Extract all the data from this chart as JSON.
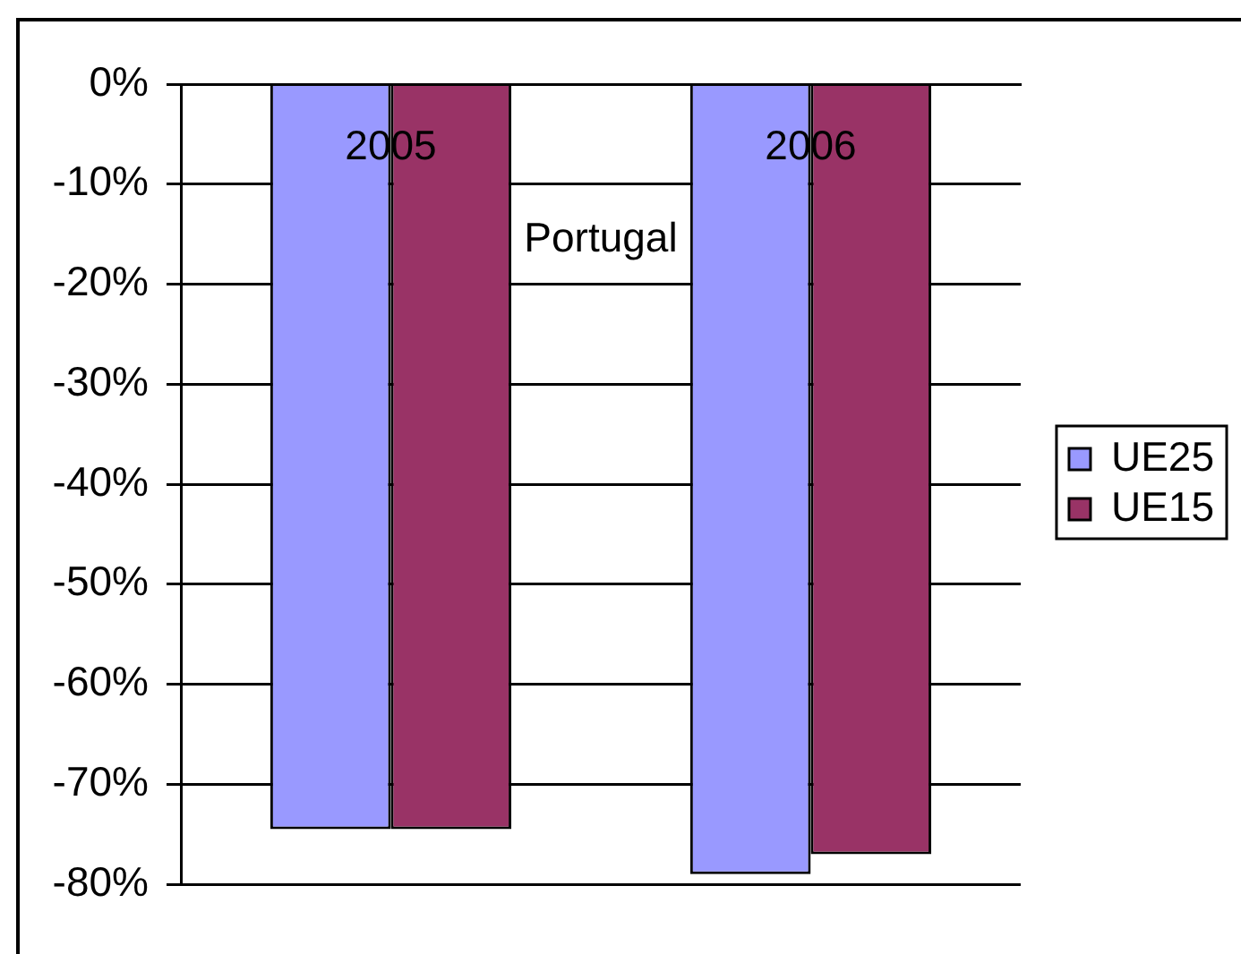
{
  "chart_data": {
    "type": "bar",
    "xlabel": "Portugal",
    "categories": [
      "2005",
      "2006"
    ],
    "series": [
      {
        "name": "UE25",
        "color": "#9999ff",
        "values": [
          -74.5,
          -79
        ]
      },
      {
        "name": "UE15",
        "color": "#993366",
        "values": [
          -74.5,
          -77
        ]
      }
    ],
    "ylim": [
      -80,
      0
    ],
    "yticks": [
      {
        "value": 0,
        "label": "0%"
      },
      {
        "value": -10,
        "label": "-10%"
      },
      {
        "value": -20,
        "label": "-20%"
      },
      {
        "value": -30,
        "label": "-30%"
      },
      {
        "value": -40,
        "label": "-40%"
      },
      {
        "value": -50,
        "label": "-50%"
      },
      {
        "value": -60,
        "label": "-60%"
      },
      {
        "value": -70,
        "label": "-70%"
      },
      {
        "value": -80,
        "label": "-80%"
      }
    ],
    "grid": "y",
    "legend": "right"
  }
}
